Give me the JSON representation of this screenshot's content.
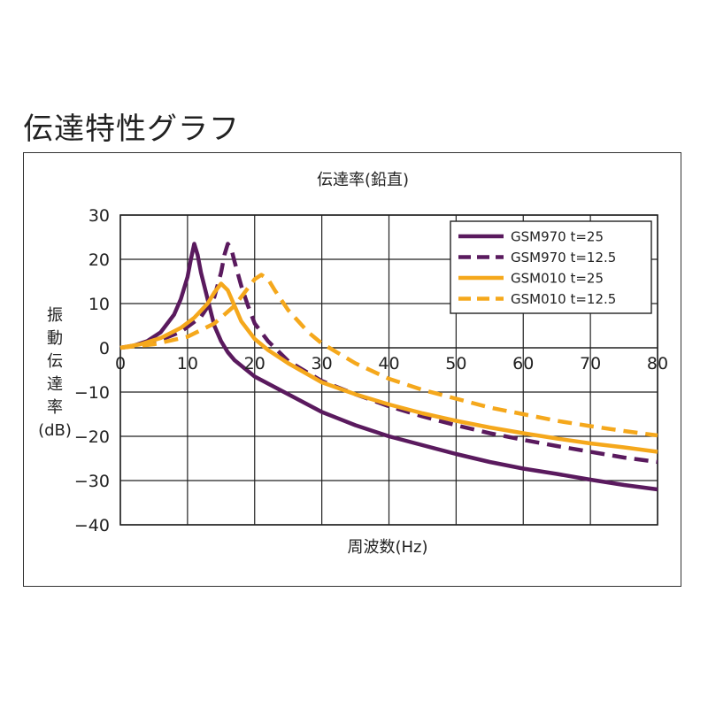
{
  "page": {
    "heading": "伝達特性グラフ"
  },
  "chart_data": {
    "type": "line",
    "title": "伝達率(鉛直)",
    "xlabel": "周波数(Hz)",
    "ylabel": "振動伝達率(dB)",
    "ylabel_lines": [
      "振",
      "動",
      "伝",
      "達",
      "率",
      "(dB)"
    ],
    "xlim": [
      0,
      80
    ],
    "ylim": [
      -40,
      30
    ],
    "xticks": [
      0,
      10,
      20,
      30,
      40,
      50,
      60,
      70,
      80
    ],
    "yticks": [
      30,
      20,
      10,
      0,
      -10,
      -20,
      -30,
      -40
    ],
    "ytick_labels": [
      "30",
      "20",
      "10",
      "0",
      "−10",
      "−20",
      "−30",
      "−40"
    ],
    "grid": true,
    "legend_position": "top-right",
    "colors": {
      "purple": "#5a1a5e",
      "orange": "#f5a81c"
    },
    "series": [
      {
        "name": "GSM970  t=25",
        "color": "#5a1a5e",
        "dash": false,
        "points": [
          [
            0,
            0
          ],
          [
            2,
            0.5
          ],
          [
            4,
            1.5
          ],
          [
            6,
            3.5
          ],
          [
            8,
            7.5
          ],
          [
            9,
            11
          ],
          [
            10,
            16
          ],
          [
            10.5,
            20
          ],
          [
            11,
            23.5
          ],
          [
            11.5,
            21
          ],
          [
            12,
            17
          ],
          [
            13,
            11
          ],
          [
            14,
            5
          ],
          [
            15,
            1.5
          ],
          [
            16,
            -1
          ],
          [
            17,
            -2.8
          ],
          [
            20,
            -6.5
          ],
          [
            25,
            -10.5
          ],
          [
            30,
            -14.5
          ],
          [
            35,
            -17.5
          ],
          [
            40,
            -20
          ],
          [
            45,
            -22
          ],
          [
            50,
            -24
          ],
          [
            55,
            -25.8
          ],
          [
            60,
            -27.3
          ],
          [
            65,
            -28.5
          ],
          [
            70,
            -29.8
          ],
          [
            75,
            -31
          ],
          [
            80,
            -32
          ]
        ]
      },
      {
        "name": "GSM970  t=12.5",
        "color": "#5a1a5e",
        "dash": true,
        "points": [
          [
            0,
            0
          ],
          [
            3,
            0.6
          ],
          [
            6,
            1.8
          ],
          [
            9,
            3.6
          ],
          [
            12,
            7
          ],
          [
            14,
            11.5
          ],
          [
            15,
            17
          ],
          [
            15.5,
            21
          ],
          [
            16,
            23.5
          ],
          [
            16.5,
            22.5
          ],
          [
            17,
            19.5
          ],
          [
            18,
            14
          ],
          [
            19,
            9.5
          ],
          [
            20,
            5.5
          ],
          [
            22,
            1.5
          ],
          [
            25,
            -3
          ],
          [
            30,
            -7.5
          ],
          [
            35,
            -10.5
          ],
          [
            40,
            -13.2
          ],
          [
            45,
            -15.5
          ],
          [
            50,
            -17.5
          ],
          [
            55,
            -19.3
          ],
          [
            60,
            -20.8
          ],
          [
            65,
            -22.2
          ],
          [
            70,
            -23.5
          ],
          [
            75,
            -24.8
          ],
          [
            80,
            -25.8
          ]
        ]
      },
      {
        "name": "GSM010  t=25",
        "color": "#f5a81c",
        "dash": false,
        "points": [
          [
            0,
            0
          ],
          [
            3,
            0.8
          ],
          [
            6,
            2.2
          ],
          [
            9,
            4.5
          ],
          [
            11,
            6.8
          ],
          [
            13,
            10
          ],
          [
            14,
            12.5
          ],
          [
            15,
            14.5
          ],
          [
            16,
            13
          ],
          [
            17,
            9.5
          ],
          [
            18,
            6
          ],
          [
            20,
            2
          ],
          [
            22,
            -0.5
          ],
          [
            25,
            -3.5
          ],
          [
            30,
            -7.8
          ],
          [
            35,
            -10.5
          ],
          [
            40,
            -12.8
          ],
          [
            45,
            -14.8
          ],
          [
            50,
            -16.5
          ],
          [
            55,
            -18
          ],
          [
            60,
            -19.3
          ],
          [
            65,
            -20.5
          ],
          [
            70,
            -21.6
          ],
          [
            75,
            -22.5
          ],
          [
            80,
            -23.5
          ]
        ]
      },
      {
        "name": "GSM010  t=12.5",
        "color": "#f5a81c",
        "dash": true,
        "points": [
          [
            0,
            0
          ],
          [
            5,
            0.8
          ],
          [
            10,
            2.5
          ],
          [
            14,
            5.5
          ],
          [
            17,
            9.5
          ],
          [
            19,
            13.5
          ],
          [
            20,
            15.5
          ],
          [
            21,
            16.5
          ],
          [
            22,
            15.5
          ],
          [
            23,
            13
          ],
          [
            25,
            8.5
          ],
          [
            28,
            3.5
          ],
          [
            30,
            1
          ],
          [
            35,
            -3.5
          ],
          [
            40,
            -7
          ],
          [
            45,
            -9.5
          ],
          [
            50,
            -11.5
          ],
          [
            55,
            -13.5
          ],
          [
            60,
            -15
          ],
          [
            65,
            -16.5
          ],
          [
            70,
            -17.7
          ],
          [
            75,
            -18.8
          ],
          [
            80,
            -19.8
          ]
        ]
      }
    ]
  }
}
